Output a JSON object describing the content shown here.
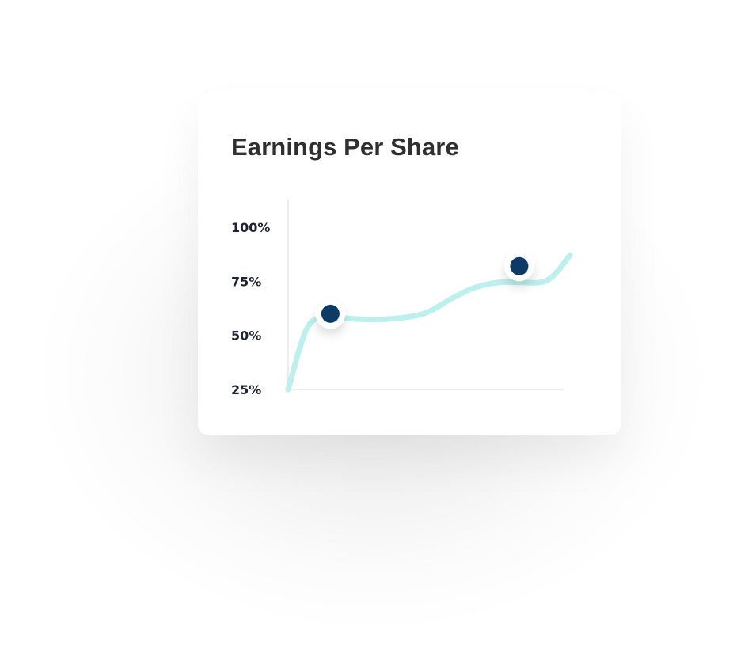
{
  "card": {
    "title": "Earnings Per Share"
  },
  "colors": {
    "line": "#bdf0ec",
    "point": "#0d3b66",
    "axis": "#e6e6e6",
    "text": "#2f2f2f"
  },
  "chart_data": {
    "type": "line",
    "title": "Earnings Per Share",
    "xlabel": "",
    "ylabel": "",
    "ylim": [
      25,
      100
    ],
    "xlim": [
      0,
      10
    ],
    "yticks": [
      25,
      50,
      75,
      100
    ],
    "ytick_labels": [
      "25%",
      "50%",
      "75%",
      "100%"
    ],
    "grid": false,
    "series": [
      {
        "x": [
          0,
          0.7,
          1.5,
          2.5,
          3.5,
          4.8,
          5.8,
          6.6,
          7.5,
          8.2,
          9.2,
          10
        ],
        "values": [
          25,
          54,
          58,
          57.5,
          57.5,
          60,
          67,
          72,
          74.5,
          74.5,
          75.5,
          87
        ]
      }
    ],
    "markers": [
      {
        "x": 1.5,
        "y": 60
      },
      {
        "x": 8.2,
        "y": 82
      }
    ]
  }
}
